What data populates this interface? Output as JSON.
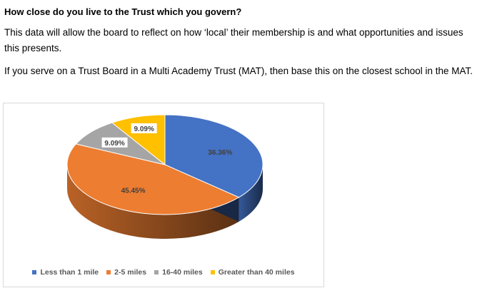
{
  "heading": "How close do you live to the Trust which you govern?",
  "paragraphs": [
    "This data will allow the board to reflect on how ‘local’ their membership is and what opportunities and issues this presents.",
    "If you serve on a Trust Board in a Multi Academy Trust (MAT), then base this on the closest school in the MAT."
  ],
  "chart_data": {
    "type": "pie",
    "style": "3d",
    "title": "",
    "legend_position": "bottom",
    "categories": [
      "Less than 1 mile",
      "2-5 miles",
      "16-40 miles",
      "Greater than 40 miles"
    ],
    "values": [
      36.36,
      45.45,
      9.09,
      9.09
    ],
    "labels": [
      "36.36%",
      "45.45%",
      "9.09%",
      "9.09%"
    ],
    "colors": [
      "#4472C4",
      "#ED7D31",
      "#A5A5A5",
      "#FFC000"
    ]
  }
}
